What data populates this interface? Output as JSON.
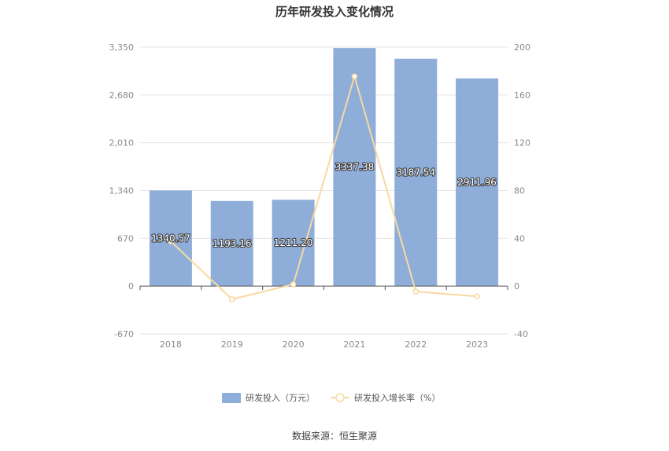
{
  "chart_data": {
    "type": "bar",
    "title": "历年研发投入变化情况",
    "categories": [
      "2018",
      "2019",
      "2020",
      "2021",
      "2022",
      "2023"
    ],
    "series": [
      {
        "name": "研发投入（万元）",
        "type": "bar",
        "axis": "left",
        "color": "#8eadd9",
        "values": [
          1340.57,
          1193.16,
          1211.2,
          3337.38,
          3187.54,
          2911.96
        ],
        "labels": [
          "1340.57",
          "1193.16",
          "1211.20",
          "3337.38",
          "3187.54",
          "2911.96"
        ]
      },
      {
        "name": "研发投入增长率（%）",
        "type": "line",
        "axis": "right",
        "color": "#f8d9a0",
        "values": [
          37.5,
          -11.0,
          1.5,
          175.5,
          -4.5,
          -8.6
        ]
      }
    ],
    "y_left": {
      "ylim": [
        -670,
        3350
      ],
      "ticks": [
        "-670",
        "0",
        "670",
        "1,340",
        "2,010",
        "2,680",
        "3,350"
      ],
      "tick_values": [
        -670,
        0,
        670,
        1340,
        2010,
        2680,
        3350
      ]
    },
    "y_right": {
      "ylim": [
        -40,
        200
      ],
      "ticks": [
        "-40",
        "0",
        "40",
        "80",
        "120",
        "160",
        "200"
      ],
      "tick_values": [
        -40,
        0,
        40,
        80,
        120,
        160,
        200
      ]
    },
    "grid": true,
    "legend_position": "bottom-center",
    "source": "数据来源：恒生聚源"
  }
}
